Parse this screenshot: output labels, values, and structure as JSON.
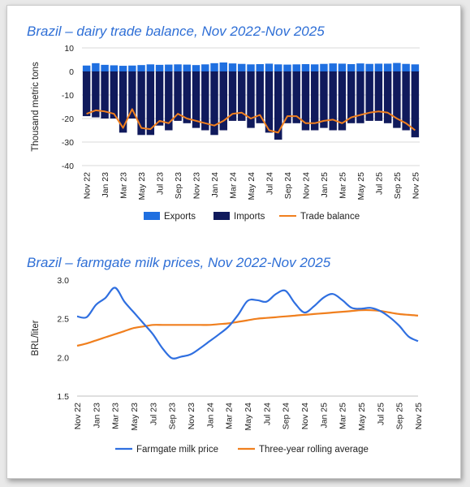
{
  "chart_data": [
    {
      "type": "bar",
      "title": "Brazil – dairy trade balance, Nov 2022-Nov 2025",
      "xlabel": "",
      "ylabel": "Thousand metric tons",
      "ylim": [
        -40,
        10
      ],
      "yticks": [
        10,
        0,
        -10,
        -20,
        -30,
        -40
      ],
      "grid": true,
      "legend": "bottom",
      "months": [
        "Nov 22",
        "Dec 22",
        "Jan 23",
        "Feb 23",
        "Mar 23",
        "Apr 23",
        "May 23",
        "Jun 23",
        "Jul 23",
        "Aug 23",
        "Sep 23",
        "Oct 23",
        "Nov 23",
        "Dec 23",
        "Jan 24",
        "Feb 24",
        "Mar 24",
        "Apr 24",
        "May 24",
        "Jun 24",
        "Jul 24",
        "Aug 24",
        "Sep 24",
        "Oct 24",
        "Nov 24",
        "Dec 24",
        "Jan 25",
        "Feb 25",
        "Mar 25",
        "Apr 25",
        "May 25",
        "Jun 25",
        "Jul 25",
        "Aug 25",
        "Sep 25",
        "Oct 25",
        "Nov 25"
      ],
      "tick_labels": [
        "Nov 22",
        "Jan 23",
        "Mar 23",
        "May 23",
        "Jul 23",
        "Sep 23",
        "Nov 23",
        "Jan 24",
        "Mar 24",
        "May 24",
        "Jul 24",
        "Sep 24",
        "Nov 24",
        "Jan 25",
        "Mar 25",
        "May 25",
        "Jul 25",
        "Sep 25",
        "Nov 25"
      ],
      "series": [
        {
          "name": "Exports",
          "kind": "bar",
          "color": "#1f6fe0",
          "values": [
            2.5,
            3.5,
            2.8,
            2.6,
            2.4,
            2.5,
            2.7,
            3.0,
            2.8,
            2.9,
            3.0,
            2.9,
            2.7,
            3.0,
            3.5,
            3.8,
            3.4,
            3.2,
            3.0,
            3.1,
            3.3,
            3.0,
            2.9,
            3.0,
            3.1,
            3.0,
            3.2,
            3.4,
            3.3,
            3.1,
            3.4,
            3.2,
            3.3,
            3.3,
            3.6,
            3.2,
            3.0
          ]
        },
        {
          "name": "Imports",
          "kind": "bar",
          "color": "#101a5c",
          "values": [
            -19,
            -19.5,
            -20,
            -20,
            -26,
            -20,
            -27,
            -27,
            -23,
            -25,
            -21,
            -22,
            -24,
            -25,
            -27,
            -25,
            -21,
            -21,
            -24,
            -22,
            -26,
            -29,
            -22,
            -22,
            -25,
            -25,
            -24,
            -25,
            -25,
            -22,
            -22,
            -21,
            -21,
            -22,
            -24,
            -25,
            -28
          ]
        },
        {
          "name": "Trade balance",
          "kind": "line",
          "color": "#f07f1e",
          "values": [
            -18,
            -16.5,
            -17,
            -18,
            -24,
            -16,
            -24,
            -24.5,
            -21,
            -22,
            -18,
            -20,
            -21,
            -22,
            -23,
            -21,
            -18,
            -17.5,
            -20,
            -18.5,
            -25,
            -26,
            -19,
            -19,
            -22,
            -22,
            -21,
            -20.5,
            -22,
            -19.5,
            -18.5,
            -17.5,
            -17,
            -17.5,
            -20,
            -22,
            -25
          ]
        }
      ],
      "colors": {
        "exports": "#1f6fe0",
        "imports": "#101a5c",
        "balance": "#f07f1e"
      }
    },
    {
      "type": "line",
      "title": "Brazil – farmgate milk prices, Nov 2022-Nov 2025",
      "xlabel": "",
      "ylabel": "BRL/liter",
      "ylim": [
        1.5,
        3.0
      ],
      "yticks": [
        "3.0",
        "2.5",
        "2.0",
        "1.5"
      ],
      "grid": false,
      "legend": "bottom",
      "months": [
        "Nov 22",
        "Dec 22",
        "Jan 23",
        "Feb 23",
        "Mar 23",
        "Apr 23",
        "May 23",
        "Jun 23",
        "Jul 23",
        "Aug 23",
        "Sep 23",
        "Oct 23",
        "Nov 23",
        "Dec 23",
        "Jan 24",
        "Feb 24",
        "Mar 24",
        "Apr 24",
        "May 24",
        "Jun 24",
        "Jul 24",
        "Aug 24",
        "Sep 24",
        "Oct 24",
        "Nov 24",
        "Dec 24",
        "Jan 25",
        "Feb 25",
        "Mar 25",
        "Apr 25",
        "May 25",
        "Jun 25",
        "Jul 25",
        "Aug 25",
        "Sep 25",
        "Oct 25",
        "Nov 25"
      ],
      "tick_labels": [
        "Nov 22",
        "Jan 23",
        "Mar 23",
        "May 23",
        "Jul 23",
        "Sep 23",
        "Nov 23",
        "Jan 24",
        "Mar 24",
        "May 24",
        "Jul 24",
        "Sep 24",
        "Nov 24",
        "Jan 25",
        "Mar 25",
        "May 25",
        "Jul 25",
        "Sep 25",
        "Nov 25"
      ],
      "series": [
        {
          "name": "Farmgate milk price",
          "color": "#2f6fe0",
          "values": [
            2.53,
            2.52,
            2.68,
            2.77,
            2.9,
            2.72,
            2.58,
            2.44,
            2.3,
            2.12,
            1.99,
            2.01,
            2.04,
            2.12,
            2.21,
            2.3,
            2.4,
            2.55,
            2.73,
            2.74,
            2.72,
            2.82,
            2.86,
            2.7,
            2.58,
            2.66,
            2.77,
            2.82,
            2.74,
            2.64,
            2.63,
            2.64,
            2.6,
            2.52,
            2.41,
            2.27,
            2.21
          ]
        },
        {
          "name": "Three-year rolling average",
          "color": "#f07f1e",
          "values": [
            2.15,
            2.18,
            2.22,
            2.26,
            2.3,
            2.34,
            2.38,
            2.4,
            2.42,
            2.42,
            2.42,
            2.42,
            2.42,
            2.42,
            2.42,
            2.43,
            2.44,
            2.46,
            2.48,
            2.5,
            2.51,
            2.52,
            2.53,
            2.54,
            2.55,
            2.56,
            2.57,
            2.58,
            2.59,
            2.6,
            2.61,
            2.61,
            2.6,
            2.58,
            2.56,
            2.55,
            2.54
          ]
        }
      ],
      "colors": {
        "price": "#2f6fe0",
        "average": "#f07f1e"
      }
    }
  ]
}
